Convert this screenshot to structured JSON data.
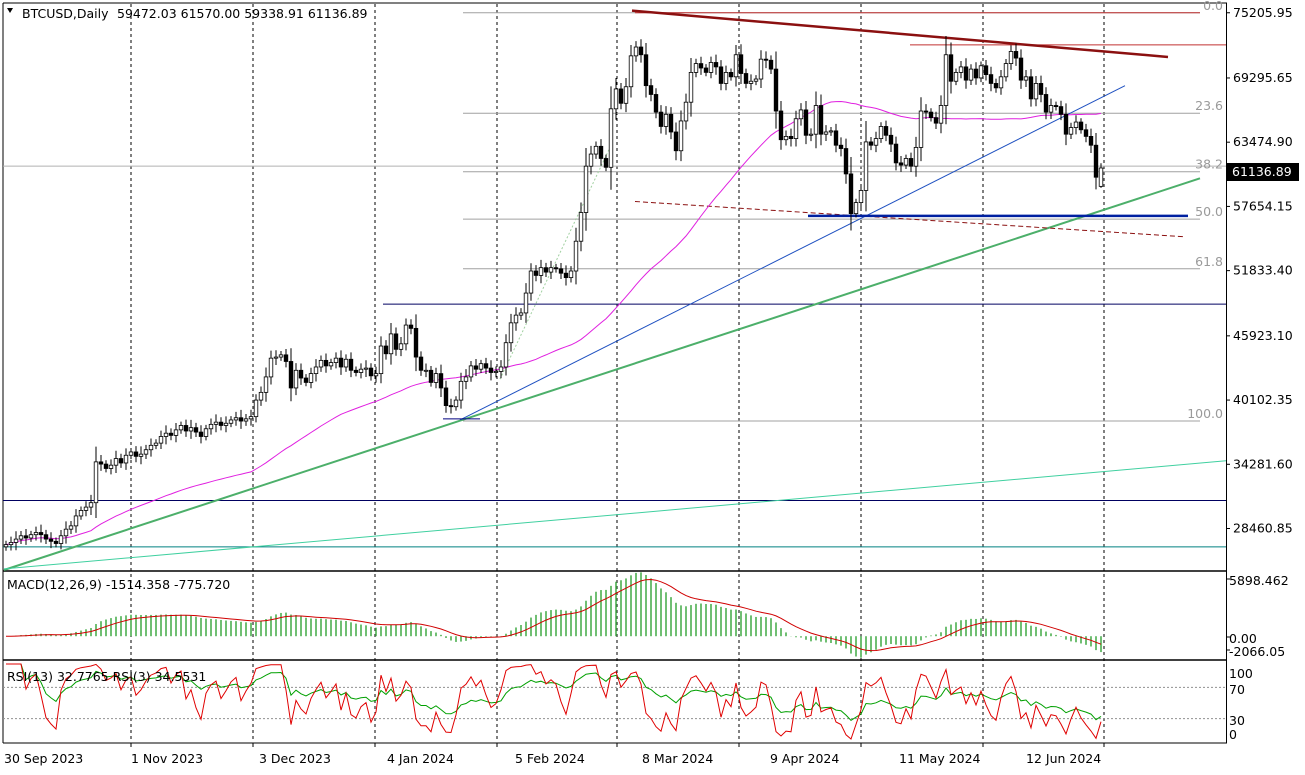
{
  "header": {
    "symbol": "BTCUSD,Daily",
    "ohlc": "59472.03 61570.00 59338.91 61136.89"
  },
  "price_tag": "61136.89",
  "macd_label": "MACD(12,26,9) -1514.358 -775.720",
  "rsi_label": "RSI(13) 32.7765 RSI(3) 34.5531",
  "colors": {
    "bull": "#009a00",
    "bear": "#8b0000",
    "ma": "#e020e0",
    "macd_hist": "#4caf50",
    "macd_signal": "#d00000",
    "rsi13": "#00a000",
    "rsi3": "#e00000",
    "trend_green": "#4caf6a",
    "trend_blue": "#1e50c0",
    "trend_red": "#8b1010",
    "trend_aqua": "#40d0a0",
    "hline_navy": "#000060",
    "hline_teal": "#008080",
    "fib": "#a0a0a0"
  },
  "chart_data": [
    {
      "type": "candlestick",
      "title": "BTCUSD,Daily",
      "ylim": [
        24700,
        76000
      ],
      "y_ticks": [
        "75205.95",
        "69295.65",
        "63474.90",
        "57654.15",
        "51833.40",
        "45923.10",
        "40102.35",
        "34281.60",
        "28460.85"
      ],
      "x_ticks": [
        "30 Sep 2023",
        "1 Nov 2023",
        "3 Dec 2023",
        "4 Jan 2024",
        "5 Feb 2024",
        "8 Mar 2024",
        "9 Apr 2024",
        "11 May 2024",
        "12 Jun 2024"
      ],
      "last": {
        "open": 59472.03,
        "high": 61570.0,
        "low": 59338.91,
        "close": 61136.89
      },
      "fib_levels": [
        {
          "label": "0.0",
          "price": 75205
        },
        {
          "label": "23.6",
          "price": 66100
        },
        {
          "label": "38.2",
          "price": 60800
        },
        {
          "label": "50.0",
          "price": 56500
        },
        {
          "label": "61.8",
          "price": 52000
        },
        {
          "label": "100.0",
          "price": 38200
        }
      ],
      "horizontal_lines": [
        {
          "price": 48800,
          "color": "navy"
        },
        {
          "price": 31000,
          "color": "navy"
        },
        {
          "price": 26800,
          "color": "teal"
        },
        {
          "price": 61300,
          "color": "gray"
        }
      ],
      "closes": [
        27000,
        27200,
        27500,
        27800,
        27600,
        27900,
        28100,
        27900,
        27500,
        27300,
        27100,
        27800,
        28400,
        28700,
        29600,
        30100,
        30400,
        30800,
        34500,
        34300,
        33900,
        34200,
        34800,
        34400,
        35100,
        35400,
        35000,
        35200,
        35600,
        36000,
        36200,
        36800,
        37100,
        36900,
        37400,
        37800,
        37300,
        37600,
        37200,
        36800,
        37500,
        37900,
        38100,
        37800,
        38000,
        38300,
        38500,
        38200,
        38400,
        38600,
        40100,
        40800,
        42200,
        43900,
        44000,
        44200,
        43600,
        41200,
        42800,
        42100,
        41700,
        42500,
        43100,
        43700,
        43200,
        43500,
        43900,
        43100,
        43800,
        42800,
        42600,
        42900,
        43000,
        42300,
        42500,
        45000,
        44300,
        46100,
        44700,
        45200,
        46900,
        46600,
        44000,
        42800,
        42800,
        41700,
        42500,
        41200,
        39600,
        39500,
        40100,
        41800,
        42200,
        43200,
        42900,
        43400,
        43000,
        42600,
        42700,
        43100,
        45300,
        47100,
        47800,
        48000,
        49800,
        51800,
        51400,
        52100,
        51700,
        52100,
        52000,
        51600,
        51200,
        51800,
        54500,
        57100,
        61300,
        62400,
        63100,
        62000,
        61200,
        66500,
        68300,
        67000,
        68500,
        71300,
        72100,
        71400,
        68600,
        67800,
        66200,
        64900,
        66000,
        64400,
        62700,
        65400,
        67100,
        69800,
        70600,
        70200,
        69800,
        70700,
        70300,
        68800,
        69800,
        69400,
        71400,
        69700,
        68800,
        69000,
        69200,
        71000,
        70900,
        70100,
        66300,
        63700,
        64000,
        63800,
        65600,
        66400,
        64100,
        64200,
        66800,
        64200,
        64400,
        64500,
        63200,
        62900,
        60600,
        57000,
        58000,
        59100,
        63500,
        63200,
        63800,
        64900,
        64100,
        63300,
        61600,
        61400,
        62000,
        61300,
        63000,
        66300,
        66200,
        65700,
        65200,
        66800,
        71400,
        69000,
        69800,
        70300,
        69100,
        70100,
        69300,
        70400,
        69600,
        68800,
        68400,
        69400,
        70600,
        71700,
        71100,
        69100,
        69400,
        67400,
        68800,
        67800,
        66200,
        66800,
        66700,
        66000,
        64200,
        64800,
        65300,
        64600,
        64000,
        63200,
        60300,
        61136
      ],
      "ma_period": 50
    },
    {
      "type": "histogram",
      "title": "MACD(12,26,9)",
      "values_label": "-1514.358 -775.720",
      "y_ticks": [
        "5898.462",
        "0.00",
        "-2066.05"
      ],
      "ylim": [
        -2066.05,
        5898.462
      ]
    },
    {
      "type": "line",
      "title": "RSI(13) RSI(3)",
      "values_label": "32.7765 34.5531",
      "y_ticks": [
        "100",
        "70",
        "30",
        "0"
      ],
      "ylim": [
        0,
        100
      ]
    }
  ]
}
